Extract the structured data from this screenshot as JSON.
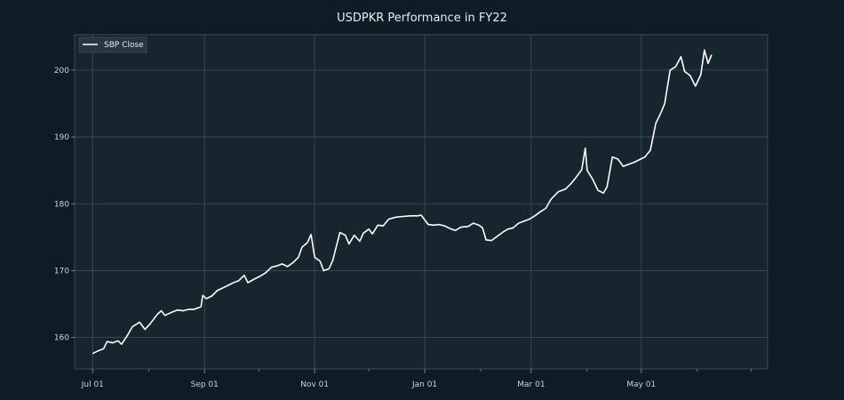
{
  "chart_data": {
    "type": "line",
    "title": "USDPKR Performance in FY22",
    "xlabel": "",
    "ylabel": "",
    "legend": {
      "placement": "top-left",
      "entries": [
        "SBP Close"
      ]
    },
    "grid": true,
    "x_range": [
      "2021-06-21",
      "2022-07-10"
    ],
    "ylim": [
      155.3,
      205.3
    ],
    "x_ticks": [
      {
        "date": "2021-07-01",
        "label": "Jul 01"
      },
      {
        "date": "2021-09-01",
        "label": "Sep 01"
      },
      {
        "date": "2021-11-01",
        "label": "Nov 01"
      },
      {
        "date": "2022-01-01",
        "label": "Jan 01"
      },
      {
        "date": "2022-03-01",
        "label": "Mar 01"
      },
      {
        "date": "2022-05-01",
        "label": "May 01"
      }
    ],
    "minor_x_ticks": [
      "2021-08-01",
      "2021-10-01",
      "2021-12-01",
      "2022-02-01",
      "2022-04-01",
      "2022-06-01",
      "2022-07-01"
    ],
    "y_ticks": [
      160,
      170,
      180,
      190,
      200
    ],
    "series": [
      {
        "name": "SBP Close",
        "color": "#ffffff",
        "points": [
          [
            "2021-07-01",
            157.6
          ],
          [
            "2021-07-04",
            158.0
          ],
          [
            "2021-07-07",
            158.3
          ],
          [
            "2021-07-09",
            159.4
          ],
          [
            "2021-07-12",
            159.2
          ],
          [
            "2021-07-15",
            159.5
          ],
          [
            "2021-07-17",
            159.0
          ],
          [
            "2021-07-20",
            160.2
          ],
          [
            "2021-07-23",
            161.6
          ],
          [
            "2021-07-27",
            162.3
          ],
          [
            "2021-07-30",
            161.2
          ],
          [
            "2021-08-02",
            162.1
          ],
          [
            "2021-08-06",
            163.5
          ],
          [
            "2021-08-08",
            164.0
          ],
          [
            "2021-08-10",
            163.3
          ],
          [
            "2021-08-14",
            163.8
          ],
          [
            "2021-08-17",
            164.1
          ],
          [
            "2021-08-20",
            164.0
          ],
          [
            "2021-08-23",
            164.2
          ],
          [
            "2021-08-26",
            164.2
          ],
          [
            "2021-08-30",
            164.6
          ],
          [
            "2021-08-31",
            166.3
          ],
          [
            "2021-09-02",
            165.8
          ],
          [
            "2021-09-05",
            166.2
          ],
          [
            "2021-09-08",
            167.0
          ],
          [
            "2021-09-11",
            167.4
          ],
          [
            "2021-09-14",
            167.8
          ],
          [
            "2021-09-17",
            168.2
          ],
          [
            "2021-09-20",
            168.5
          ],
          [
            "2021-09-23",
            169.3
          ],
          [
            "2021-09-25",
            168.2
          ],
          [
            "2021-09-29",
            168.8
          ],
          [
            "2021-10-02",
            169.2
          ],
          [
            "2021-10-05",
            169.7
          ],
          [
            "2021-10-08",
            170.5
          ],
          [
            "2021-10-11",
            170.7
          ],
          [
            "2021-10-14",
            171.0
          ],
          [
            "2021-10-17",
            170.6
          ],
          [
            "2021-10-20",
            171.2
          ],
          [
            "2021-10-23",
            172.0
          ],
          [
            "2021-10-25",
            173.5
          ],
          [
            "2021-10-28",
            174.2
          ],
          [
            "2021-10-30",
            175.4
          ],
          [
            "2021-11-01",
            172.0
          ],
          [
            "2021-11-04",
            171.4
          ],
          [
            "2021-11-06",
            170.0
          ],
          [
            "2021-11-09",
            170.3
          ],
          [
            "2021-11-11",
            171.5
          ],
          [
            "2021-11-15",
            175.7
          ],
          [
            "2021-11-18",
            175.3
          ],
          [
            "2021-11-20",
            174.0
          ],
          [
            "2021-11-23",
            175.3
          ],
          [
            "2021-11-26",
            174.4
          ],
          [
            "2021-11-28",
            175.6
          ],
          [
            "2021-12-01",
            176.2
          ],
          [
            "2021-12-03",
            175.5
          ],
          [
            "2021-12-06",
            176.8
          ],
          [
            "2021-12-09",
            176.7
          ],
          [
            "2021-12-12",
            177.7
          ],
          [
            "2021-12-16",
            178.0
          ],
          [
            "2021-12-20",
            178.1
          ],
          [
            "2021-12-24",
            178.2
          ],
          [
            "2021-12-28",
            178.2
          ],
          [
            "2021-12-30",
            178.3
          ],
          [
            "2022-01-03",
            176.9
          ],
          [
            "2022-01-06",
            176.8
          ],
          [
            "2022-01-09",
            176.9
          ],
          [
            "2022-01-12",
            176.7
          ],
          [
            "2022-01-15",
            176.3
          ],
          [
            "2022-01-18",
            176.0
          ],
          [
            "2022-01-21",
            176.5
          ],
          [
            "2022-01-25",
            176.6
          ],
          [
            "2022-01-28",
            177.1
          ],
          [
            "2022-01-31",
            176.8
          ],
          [
            "2022-02-02",
            176.4
          ],
          [
            "2022-02-04",
            174.6
          ],
          [
            "2022-02-07",
            174.5
          ],
          [
            "2022-02-10",
            175.1
          ],
          [
            "2022-02-13",
            175.7
          ],
          [
            "2022-02-16",
            176.2
          ],
          [
            "2022-02-19",
            176.4
          ],
          [
            "2022-02-22",
            177.1
          ],
          [
            "2022-02-25",
            177.4
          ],
          [
            "2022-02-28",
            177.7
          ],
          [
            "2022-03-03",
            178.2
          ],
          [
            "2022-03-06",
            178.8
          ],
          [
            "2022-03-09",
            179.3
          ],
          [
            "2022-03-12",
            180.7
          ],
          [
            "2022-03-16",
            181.8
          ],
          [
            "2022-03-20",
            182.2
          ],
          [
            "2022-03-23",
            183.0
          ],
          [
            "2022-03-26",
            184.0
          ],
          [
            "2022-03-29",
            185.1
          ],
          [
            "2022-03-31",
            188.3
          ],
          [
            "2022-04-01",
            185.0
          ],
          [
            "2022-04-04",
            183.7
          ],
          [
            "2022-04-07",
            182.0
          ],
          [
            "2022-04-10",
            181.6
          ],
          [
            "2022-04-12",
            182.5
          ],
          [
            "2022-04-15",
            187.0
          ],
          [
            "2022-04-18",
            186.7
          ],
          [
            "2022-04-21",
            185.6
          ],
          [
            "2022-04-24",
            185.9
          ],
          [
            "2022-04-27",
            186.2
          ],
          [
            "2022-04-30",
            186.6
          ],
          [
            "2022-05-03",
            187.0
          ],
          [
            "2022-05-06",
            188.0
          ],
          [
            "2022-05-09",
            192.0
          ],
          [
            "2022-05-12",
            193.7
          ],
          [
            "2022-05-14",
            195.0
          ],
          [
            "2022-05-17",
            200.0
          ],
          [
            "2022-05-20",
            200.5
          ],
          [
            "2022-05-23",
            202.0
          ],
          [
            "2022-05-25",
            199.8
          ],
          [
            "2022-05-28",
            199.2
          ],
          [
            "2022-05-31",
            197.6
          ],
          [
            "2022-06-03",
            199.3
          ],
          [
            "2022-06-05",
            203.0
          ],
          [
            "2022-06-07",
            201.0
          ],
          [
            "2022-06-09",
            202.3
          ]
        ]
      }
    ]
  }
}
